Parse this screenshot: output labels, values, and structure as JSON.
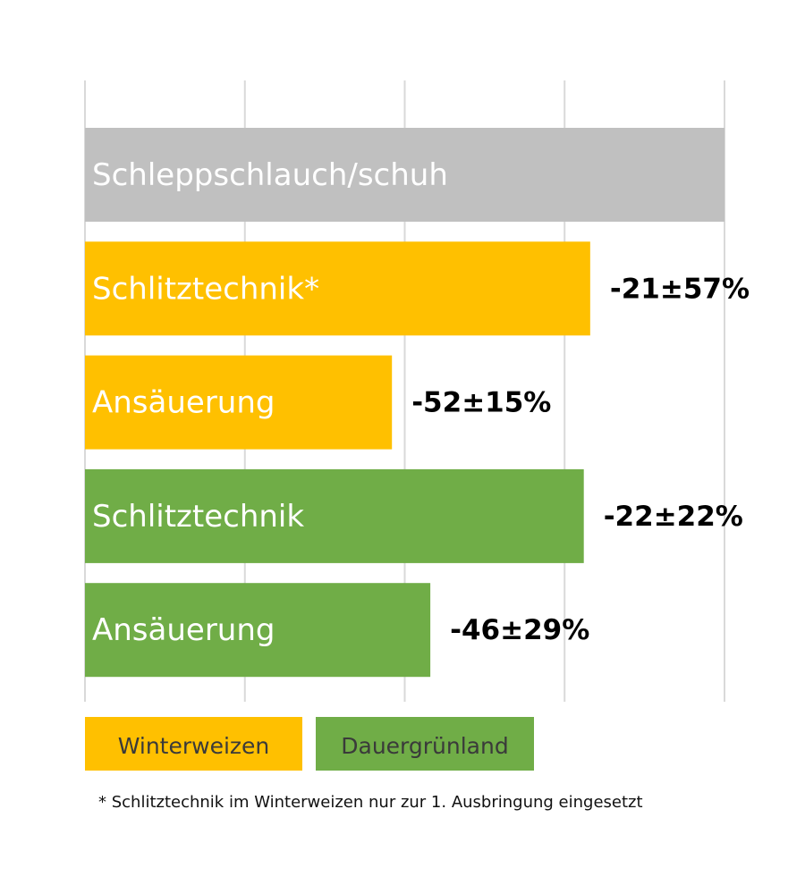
{
  "chart_data": {
    "type": "hbar",
    "categories": [
      "Schleppschlauch/schuh",
      "Schlitztechnik*",
      "Ansäuerung",
      "Schlitztechnik",
      "Ansäuerung"
    ],
    "values": [
      0,
      -21,
      -52,
      -22,
      -46
    ],
    "value_labels": [
      null,
      "-21±57%",
      "-52±15%",
      "-22±22%",
      "-46±29%"
    ],
    "colors": [
      "#c0c0c0",
      "#ffc000",
      "#ffc000",
      "#70ad47",
      "#70ad47"
    ],
    "xlim": [
      -100,
      0
    ],
    "xticks": [
      -100,
      -75,
      -50,
      -25,
      0
    ],
    "grid": true,
    "legend": [
      {
        "name": "Winterweizen",
        "color": "#ffc000"
      },
      {
        "name": "Dauergrünland",
        "color": "#70ad47"
      }
    ],
    "footnote": "* Schlitztechnik im Winterweizen nur zur 1. Ausbringung eingesetzt"
  }
}
